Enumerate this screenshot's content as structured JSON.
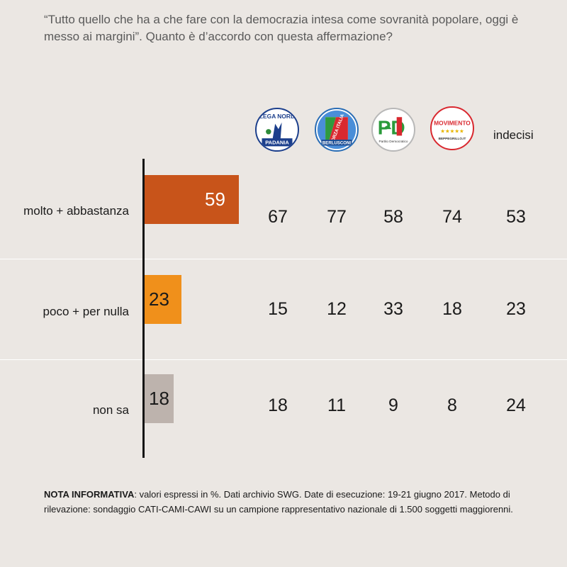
{
  "question": "“Tutto quello che ha a che fare con la democrazia intesa come sovranità popolare, oggi è messo ai margini”. Quanto è d’accordo con questa affermazione?",
  "columns": [
    {
      "logo": "lega-nord-logo",
      "logo_text_top": "LEGA NORD",
      "logo_text_bottom": "PADANIA"
    },
    {
      "logo": "forza-italia-logo",
      "logo_text_top": "FORZA ITALIA",
      "logo_text_bottom": "BERLUSCONI"
    },
    {
      "logo": "pd-logo",
      "logo_text_top": "PD",
      "logo_text_bottom": "Partito Democratico"
    },
    {
      "logo": "movimento-5-stelle-logo",
      "logo_text_top": "MOVIMENTO",
      "logo_text_bottom": "BEPPEGRILLO.IT"
    },
    {
      "label": "indecisi"
    }
  ],
  "chart_data": {
    "type": "bar",
    "orientation": "horizontal",
    "categories": [
      "molto + abbastanza",
      "poco + per nulla",
      "non sa"
    ],
    "values": [
      59,
      23,
      18
    ],
    "colors": [
      "#c8541a",
      "#f0901b",
      "#bdb3ad"
    ],
    "label_colors": [
      "#ffffff",
      "#1a1a1a",
      "#1a1a1a"
    ],
    "xlim": [
      0,
      100
    ]
  },
  "table": {
    "rows": [
      {
        "category": "molto + abbastanza",
        "values": [
          "67",
          "77",
          "58",
          "74",
          "53"
        ]
      },
      {
        "category": "poco + per nulla",
        "values": [
          "15",
          "12",
          "33",
          "18",
          "23"
        ]
      },
      {
        "category": "non sa",
        "values": [
          "18",
          "11",
          "9",
          "8",
          "24"
        ]
      }
    ]
  },
  "note": {
    "bold": "NOTA INFORMATIVA",
    "text": ": valori espressi in %. Dati archivio SWG. Date di esecuzione: 19-21 giugno 2017. Metodo di rilevazione: sondaggio CATI-CAMI-CAWI su un campione rappresentativo nazionale di 1.500 soggetti maggiorenni."
  }
}
